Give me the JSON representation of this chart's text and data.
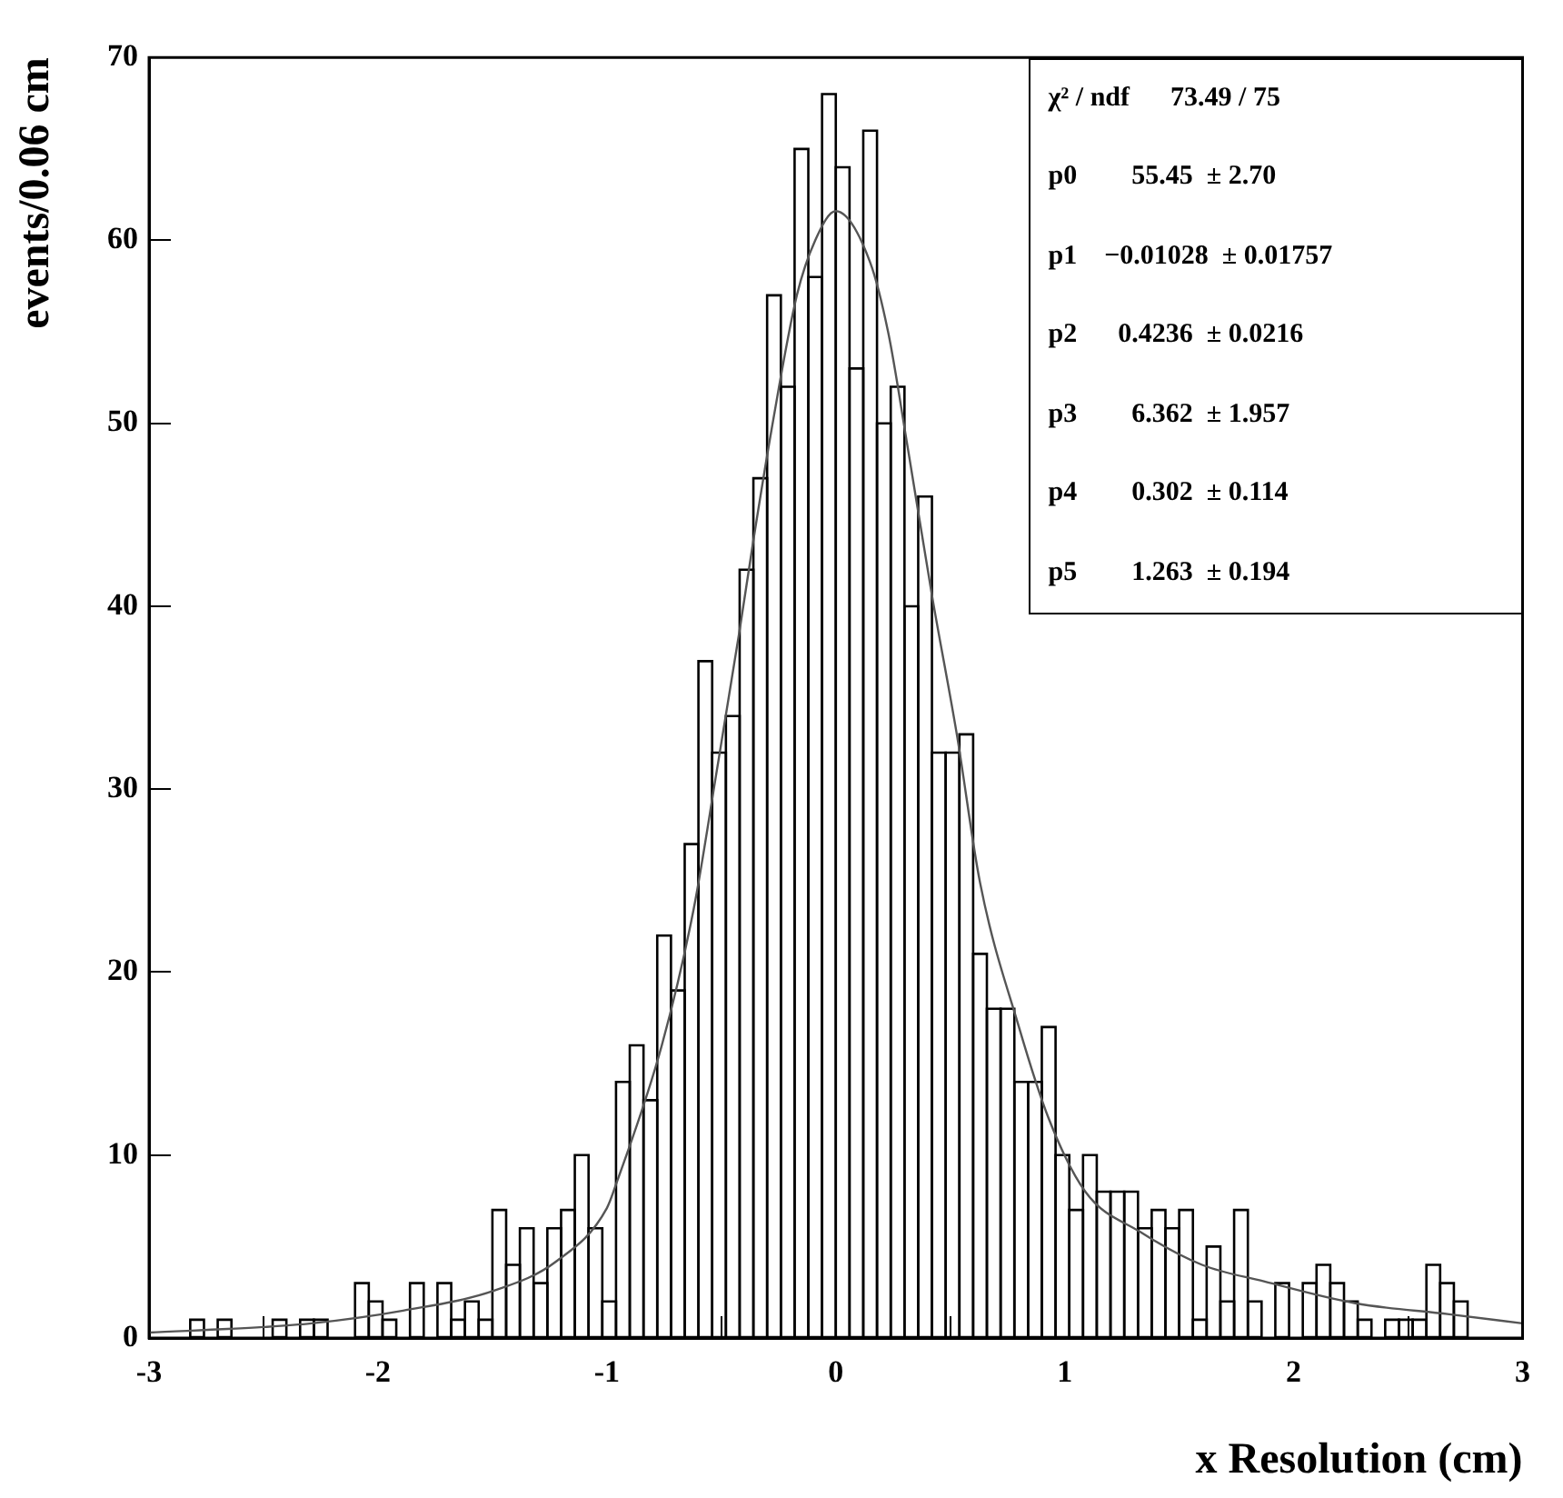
{
  "chart_data": {
    "type": "histogram",
    "xlabel": "x Resolution (cm)",
    "ylabel": "events/0.06 cm",
    "annotations": [
      "χ² / ndf      73.49 / 75",
      "p0        55.45  ± 2.70",
      "p1    −0.01028  ± 0.01757",
      "p2      0.4236  ± 0.0216",
      "p3        6.362  ± 1.957",
      "p4        0.302  ± 0.114",
      "p5        1.263  ± 0.194"
    ],
    "bins": [
      -3,
      -2.94,
      -2.88,
      -2.82,
      -2.76,
      -2.7,
      -2.64,
      -2.58,
      -2.52,
      -2.46,
      -2.4,
      -2.34,
      -2.28,
      -2.22,
      -2.16,
      -2.1,
      -2.04,
      -1.98,
      -1.92,
      -1.86,
      -1.8,
      -1.74,
      -1.68,
      -1.62,
      -1.56,
      -1.5,
      -1.44,
      -1.38,
      -1.32,
      -1.26,
      -1.2,
      -1.14,
      -1.08,
      -1.02,
      -0.96,
      -0.9,
      -0.84,
      -0.78,
      -0.72,
      -0.66,
      -0.6,
      -0.54,
      -0.48,
      -0.42,
      -0.36,
      -0.3,
      -0.24,
      -0.18,
      -0.12,
      -0.06,
      0,
      0.06,
      0.12,
      0.18,
      0.24,
      0.3,
      0.36,
      0.42,
      0.48,
      0.54,
      0.6,
      0.66,
      0.72,
      0.78,
      0.84,
      0.9,
      0.96,
      1.02,
      1.08,
      1.14,
      1.2,
      1.26,
      1.32,
      1.38,
      1.44,
      1.5,
      1.56,
      1.62,
      1.68,
      1.74,
      1.8,
      1.86,
      1.92,
      1.98,
      2.04,
      2.1,
      2.16,
      2.22,
      2.28,
      2.34,
      2.4,
      2.46,
      2.52,
      2.58,
      2.64,
      2.7,
      2.76,
      2.82,
      2.88,
      2.94,
      3
    ],
    "series": [
      {
        "color": "#000000",
        "values": [
          0,
          0,
          0,
          1,
          0,
          1,
          0,
          0,
          0,
          1,
          0,
          1,
          1,
          0,
          0,
          3,
          2,
          1,
          0,
          3,
          0,
          3,
          1,
          2,
          1,
          7,
          4,
          6,
          3,
          6,
          7,
          10,
          6,
          2,
          14,
          16,
          13,
          22,
          19,
          27,
          37,
          32,
          34,
          42,
          47,
          57,
          52,
          65,
          58,
          68,
          64,
          53,
          66,
          50,
          52,
          40,
          46,
          32,
          32,
          33,
          21,
          18,
          18,
          14,
          14,
          17,
          10,
          7,
          10,
          8,
          8,
          8,
          6,
          7,
          6,
          7,
          1,
          5,
          2,
          7,
          2,
          0,
          3,
          0,
          3,
          4,
          3,
          2,
          1,
          0,
          1,
          1,
          1,
          4,
          3,
          2,
          0,
          0,
          0,
          0
        ]
      },
      {
        "type": "line",
        "color": "#555555",
        "x": [
          -3,
          -2.5,
          -2.29,
          -1.89,
          -1.49,
          -1.22,
          -1.0,
          -0.96,
          -0.76,
          -0.62,
          -0.52,
          -0.42,
          -0.36,
          -0.28,
          -0.17,
          -0.09,
          0,
          0.15,
          0.23,
          0.31,
          0.42,
          0.53,
          0.63,
          0.8,
          0.93,
          1.09,
          1.33,
          1.6,
          1.87,
          2.27,
          2.68,
          3
        ],
        "values": [
          0.3,
          0.6,
          0.8,
          1.5,
          2.6,
          4.2,
          7.1,
          8.4,
          16,
          23.5,
          31,
          38.7,
          43.6,
          49.7,
          57,
          60,
          61.6,
          58.8,
          54.9,
          49,
          40.6,
          32.9,
          24.9,
          17,
          12,
          8,
          5.8,
          4,
          3.1,
          1.9,
          1.3,
          0.8
        ]
      }
    ],
    "xlim": [
      -3,
      3
    ],
    "xticks": [
      -3,
      -2,
      -1,
      0,
      1,
      2,
      3
    ],
    "ylim": [
      0,
      70
    ],
    "yticks": [
      0,
      10,
      20,
      30,
      40,
      50,
      60,
      70
    ],
    "grid": false,
    "legend": false
  }
}
